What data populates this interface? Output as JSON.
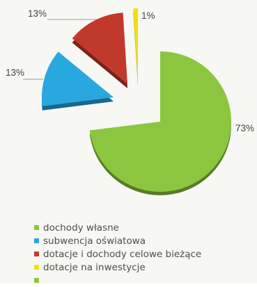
{
  "chart_data": {
    "type": "pie",
    "exploded": true,
    "three_d": true,
    "slices": [
      {
        "label": "dochody własne",
        "value": 73,
        "display": "73%",
        "color": "#8cc63f"
      },
      {
        "label": "subwencja oświatowa",
        "value": 13,
        "display": "13%",
        "color": "#29a8e0"
      },
      {
        "label": "dotacje i dochody celowe bieżące",
        "value": 13,
        "display": "13%",
        "color": "#c0392b"
      },
      {
        "label": "dotacje na inwestycje",
        "value": 1,
        "display": "1%",
        "color": "#f2e000"
      },
      {
        "label": "",
        "value": null,
        "display": "",
        "color": "#8cc63f"
      }
    ],
    "legend_position": "bottom-left"
  }
}
